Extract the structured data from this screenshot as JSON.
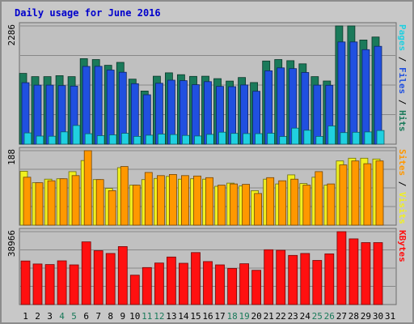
{
  "chart_data": {
    "type": "bar",
    "title": "Daily usage for June 2016",
    "categories": [
      "1",
      "2",
      "3",
      "4",
      "5",
      "6",
      "7",
      "8",
      "9",
      "10",
      "11",
      "12",
      "13",
      "14",
      "15",
      "16",
      "17",
      "18",
      "19",
      "20",
      "21",
      "22",
      "23",
      "24",
      "25",
      "26",
      "27",
      "28",
      "29",
      "30",
      "31"
    ],
    "weekend_days": [
      "4",
      "5",
      "11",
      "12",
      "18",
      "19",
      "25",
      "26"
    ],
    "panels": [
      {
        "id": "hits",
        "ymax_label": "2286",
        "ymax": 2286,
        "series": [
          {
            "name": "Hits",
            "color": "#1a7a5a",
            "values": [
              1368,
              1306,
              1306,
              1325,
              1306,
              1654,
              1636,
              1525,
              1581,
              1258,
              1027,
              1313,
              1380,
              1343,
              1311,
              1313,
              1266,
              1219,
              1288,
              1192,
              1608,
              1636,
              1615,
              1553,
              1306,
              1221,
              2286,
              2286,
              2014,
              2071,
              null
            ]
          },
          {
            "name": "Files",
            "color": "#2050e0",
            "values": [
              1189,
              1142,
              1142,
              1132,
              1122,
              1503,
              1505,
              1433,
              1391,
              1169,
              955,
              1178,
              1237,
              1227,
              1149,
              1209,
              1116,
              1111,
              1144,
              1022,
              1419,
              1475,
              1461,
              1385,
              1141,
              1139,
              1976,
              1976,
              1827,
              1891,
              null
            ]
          },
          {
            "name": "Pages",
            "color": "#20d0e0",
            "values": [
              217,
              157,
              153,
              238,
              361,
              202,
              164,
              180,
              210,
              150,
              174,
              195,
              186,
              169,
              158,
              189,
              231,
              209,
              205,
              204,
              212,
              148,
              310,
              269,
              151,
              352,
              224,
              230,
              236,
              265,
              null
            ]
          }
        ]
      },
      {
        "id": "visits",
        "ymax_label": "188",
        "ymax": 188,
        "series": [
          {
            "name": "Visits",
            "color": "#f0f020",
            "values": [
              136,
              107,
              116,
              117,
              135,
              163,
              115,
              93,
              145,
              101,
              115,
              118,
              123,
              116,
              117,
              116,
              98,
              106,
              99,
              87,
              116,
              104,
              127,
              105,
              121,
              101,
              162,
              169,
              169,
              167,
              null
            ]
          },
          {
            "name": "Sites",
            "color": "#ff9800",
            "values": [
              121,
              107,
              112,
              117,
              125,
              188,
              115,
              87,
              148,
              101,
              133,
              125,
              128,
              125,
              124,
              120,
              101,
              104,
              103,
              80,
              120,
              112,
              116,
              101,
              135,
              104,
              152,
              162,
              155,
              162,
              null
            ]
          }
        ]
      },
      {
        "id": "kbytes",
        "ymax_label": "38966",
        "ymax": 38966,
        "series": [
          {
            "name": "KBytes",
            "color": "#ff1010",
            "values": [
              23300,
              21700,
              21400,
              23400,
              21200,
              33500,
              28800,
              27300,
              31000,
              15700,
              19800,
              22200,
              25400,
              22100,
              27800,
              23000,
              21200,
              19300,
              21800,
              18300,
              29300,
              29000,
              26300,
              27300,
              23600,
              27100,
              38966,
              35100,
              33100,
              33100,
              null
            ]
          }
        ]
      }
    ]
  }
}
